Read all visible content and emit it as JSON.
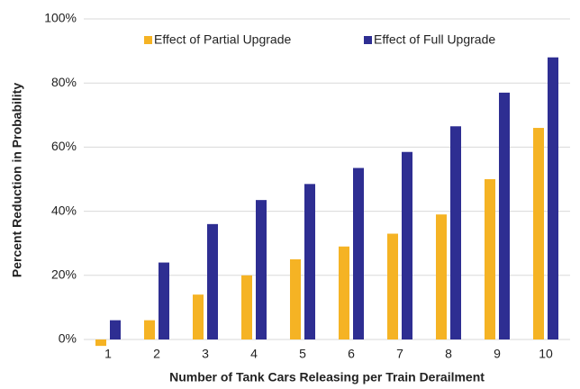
{
  "chart_data": {
    "type": "bar",
    "x_label": "Number of Tank Cars Releasing per Train Derailment",
    "y_label": "Percent Reduction in Probability",
    "categories": [
      "1",
      "2",
      "3",
      "4",
      "5",
      "6",
      "7",
      "8",
      "9",
      "10"
    ],
    "series": [
      {
        "name": "Effect of Partial Upgrade",
        "color": "#f5b324",
        "values": [
          -2,
          6,
          14,
          20,
          25,
          29,
          33,
          39,
          50,
          66
        ]
      },
      {
        "name": "Effect of Full Upgrade",
        "color": "#2e2e92",
        "values": [
          6,
          24,
          36,
          43.5,
          48.5,
          53.5,
          58.5,
          66.5,
          77,
          88
        ]
      }
    ],
    "ylim": [
      0,
      100
    ],
    "yticks": [
      {
        "value": 0,
        "label": "0%"
      },
      {
        "value": 20,
        "label": "20%"
      },
      {
        "value": 40,
        "label": "40%"
      },
      {
        "value": 60,
        "label": "60%"
      },
      {
        "value": 80,
        "label": "80%"
      },
      {
        "value": 100,
        "label": "100%"
      }
    ],
    "grid": true,
    "legend": "top"
  }
}
